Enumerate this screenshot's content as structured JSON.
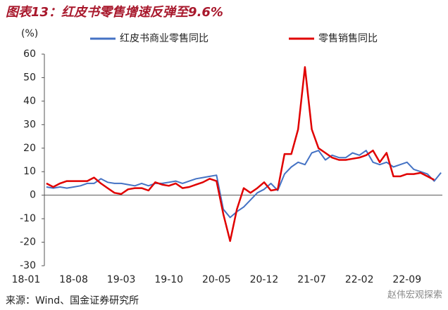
{
  "chart_data": {
    "type": "line",
    "title": "图表13：红皮书零售增速反弹至9.6%",
    "y_label": "(%)",
    "source": "来源：Wind、国金证券研究所",
    "watermark": "赵伟宏观探索",
    "xlim": [
      2.7,
      61.2
    ],
    "xticks": [
      {
        "value": 0,
        "label": "18-01"
      },
      {
        "value": 7,
        "label": "18-08"
      },
      {
        "value": 14,
        "label": "19-03"
      },
      {
        "value": 21,
        "label": "19-10"
      },
      {
        "value": 28,
        "label": "20-05"
      },
      {
        "value": 35,
        "label": "20-12"
      },
      {
        "value": 42,
        "label": "21-07"
      },
      {
        "value": 49,
        "label": "22-02"
      },
      {
        "value": 56,
        "label": "22-09"
      }
    ],
    "ylim": [
      -30,
      60
    ],
    "yticks": [
      -30,
      -20,
      -10,
      0,
      10,
      20,
      30,
      40,
      50,
      60
    ],
    "series": [
      {
        "name": "红皮书商业零售同比",
        "color": "#4472c4",
        "x": [
          3,
          4,
          5,
          6,
          7,
          8,
          9,
          10,
          11,
          12,
          13,
          14,
          15,
          16,
          17,
          18,
          19,
          20,
          21,
          22,
          23,
          24,
          25,
          26,
          27,
          28,
          29,
          30,
          31,
          32,
          33,
          34,
          35,
          36,
          37,
          38,
          39,
          40,
          41,
          42,
          43,
          44,
          45,
          46,
          47,
          48,
          49,
          50,
          51,
          52,
          53,
          54,
          55,
          56,
          57,
          58,
          59,
          60,
          61
        ],
        "values": [
          3.5,
          3,
          3.5,
          3,
          3.5,
          4,
          5,
          5,
          7,
          5.5,
          5,
          5,
          4.5,
          4,
          5,
          4,
          5,
          5,
          5.5,
          6,
          5,
          6,
          7,
          7.5,
          8,
          8.5,
          -6,
          -9.5,
          -7,
          -5,
          -2,
          1,
          2.5,
          5,
          2,
          9,
          12,
          14,
          13,
          18,
          19,
          15,
          17,
          16,
          16,
          18,
          17,
          19,
          14,
          13,
          14,
          12,
          13,
          14,
          11,
          10,
          9,
          6,
          9.6
        ]
      },
      {
        "name": "零售销售同比",
        "color": "#e00000",
        "x": [
          3,
          4,
          5,
          6,
          7,
          8,
          9,
          10,
          11,
          12,
          13,
          14,
          15,
          16,
          17,
          18,
          19,
          20,
          21,
          22,
          23,
          24,
          25,
          26,
          27,
          28,
          29,
          30,
          31,
          32,
          33,
          34,
          35,
          36,
          37,
          38,
          39,
          40,
          41,
          42,
          43,
          44,
          45,
          46,
          47,
          48,
          49,
          50,
          51,
          52,
          53,
          54,
          55,
          56,
          57,
          58,
          59,
          60
        ],
        "values": [
          5,
          3.5,
          5,
          6,
          6,
          6,
          6,
          7.5,
          5,
          3,
          1,
          0.5,
          2.5,
          3,
          3,
          2,
          5.5,
          4.5,
          4,
          5,
          3,
          3.5,
          4.5,
          5.5,
          7,
          6,
          -8,
          -19.5,
          -6,
          3,
          1,
          3,
          5.5,
          2,
          2.5,
          17.5,
          17.5,
          28,
          54.5,
          28,
          20,
          18,
          16,
          15,
          15,
          15.5,
          16,
          17,
          19,
          14,
          18,
          8,
          8,
          9,
          9,
          9.5,
          8,
          6.5
        ]
      }
    ]
  }
}
